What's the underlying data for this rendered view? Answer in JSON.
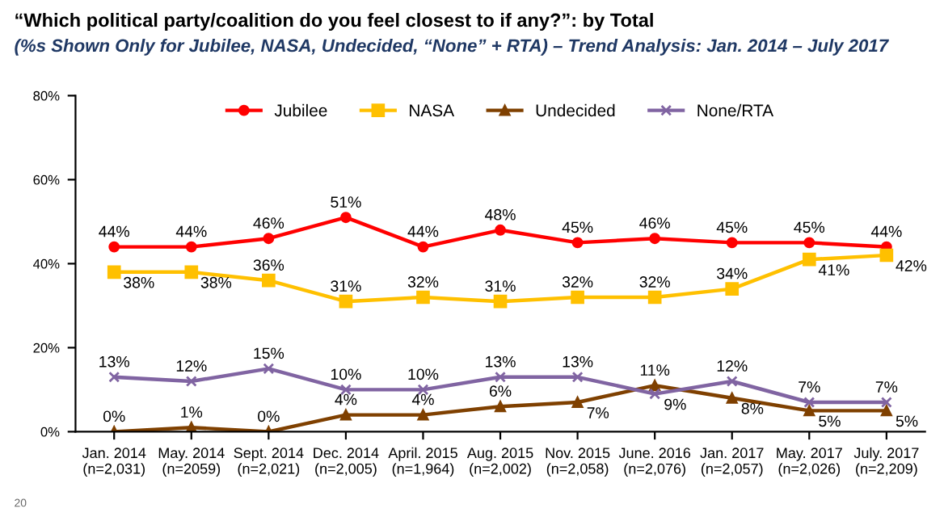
{
  "chart_data": {
    "type": "line",
    "title": "“Which political party/coalition do you feel closest to if any?”: by Total",
    "subtitle": "(%s Shown Only for Jubilee, NASA, Undecided, “None” + RTA) – Trend Analysis: Jan. 2014 – July 2017",
    "categories": [
      "Jan. 2014\n(n=2,031)",
      "May. 2014\n(n=2059)",
      "Sept. 2014\n(n=2,021)",
      "Dec. 2014\n(n=2,005)",
      "April. 2015\n(n=1,964)",
      "Aug. 2015\n(n=2,002)",
      "Nov. 2015\n(n=2,058)",
      "June. 2016\n(n=2,076)",
      "Jan. 2017\n(n=2,057)",
      "May. 2017\n(n=2,026)",
      "July. 2017\n(n=2,209)"
    ],
    "series": [
      {
        "name": "Jubilee",
        "color": "#ff0000",
        "marker": "circle",
        "values": [
          44,
          44,
          46,
          51,
          44,
          48,
          45,
          46,
          45,
          45,
          44
        ],
        "value_labels": [
          "44%",
          "44%",
          "46%",
          "51%",
          "44%",
          "48%",
          "45%",
          "46%",
          "45%",
          "45%",
          "44%"
        ]
      },
      {
        "name": "NASA",
        "color": "#ffc000",
        "marker": "square",
        "values": [
          38,
          38,
          36,
          31,
          32,
          31,
          32,
          32,
          34,
          41,
          42
        ],
        "value_labels": [
          "38%",
          "38%",
          "36%",
          "31%",
          "32%",
          "31%",
          "32%",
          "32%",
          "34%",
          "41%",
          "42%"
        ]
      },
      {
        "name": "Undecided",
        "color": "#7f4000",
        "marker": "triangle",
        "values": [
          0,
          1,
          0,
          4,
          4,
          6,
          7,
          11,
          8,
          5,
          5
        ],
        "value_labels": [
          "0%",
          "1%",
          "0%",
          "4%",
          "4%",
          "6%",
          "7%",
          "11%",
          "8%",
          "5%",
          "5%"
        ]
      },
      {
        "name": "None/RTA",
        "color": "#8064a2",
        "marker": "cross",
        "values": [
          13,
          12,
          15,
          10,
          10,
          13,
          13,
          9,
          12,
          7,
          7
        ],
        "value_labels": [
          "13%",
          "12%",
          "15%",
          "10%",
          "10%",
          "13%",
          "13%",
          "9%",
          "12%",
          "7%",
          "7%"
        ]
      }
    ],
    "ylim": [
      0,
      80
    ],
    "yticks": [
      {
        "value": 0,
        "label": "0%"
      },
      {
        "value": 20,
        "label": "20%"
      },
      {
        "value": 40,
        "label": "40%"
      },
      {
        "value": 60,
        "label": "60%"
      },
      {
        "value": 80,
        "label": "80%"
      }
    ],
    "grid": false,
    "legend": "top",
    "line_style": "solid",
    "annotations": [
      "20"
    ]
  }
}
